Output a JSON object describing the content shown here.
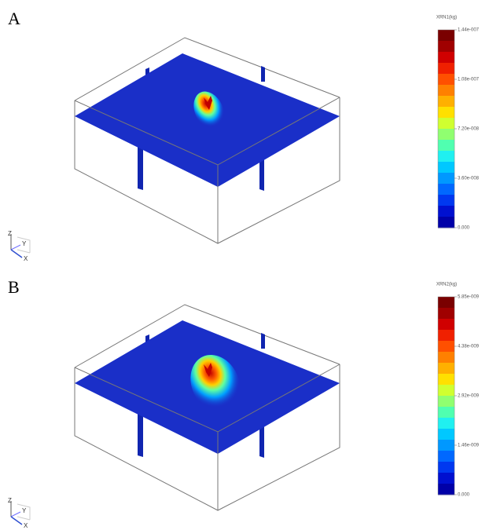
{
  "panels": [
    {
      "label": "A",
      "colorbar": {
        "title": "XRN1(kg)",
        "ticks": [
          "1.44e-007",
          "1.08e-007",
          "7.20e-008",
          "3.60e-008",
          "0.000"
        ]
      },
      "axes": [
        "Z",
        "Y",
        "X"
      ]
    },
    {
      "label": "B",
      "colorbar": {
        "title": "XRN2(kg)",
        "ticks": [
          "5.85e-009",
          "4.38e-009",
          "2.92e-009",
          "1.46e-009",
          "0.000"
        ]
      },
      "axes": [
        "Z",
        "Y",
        "X"
      ]
    }
  ]
}
